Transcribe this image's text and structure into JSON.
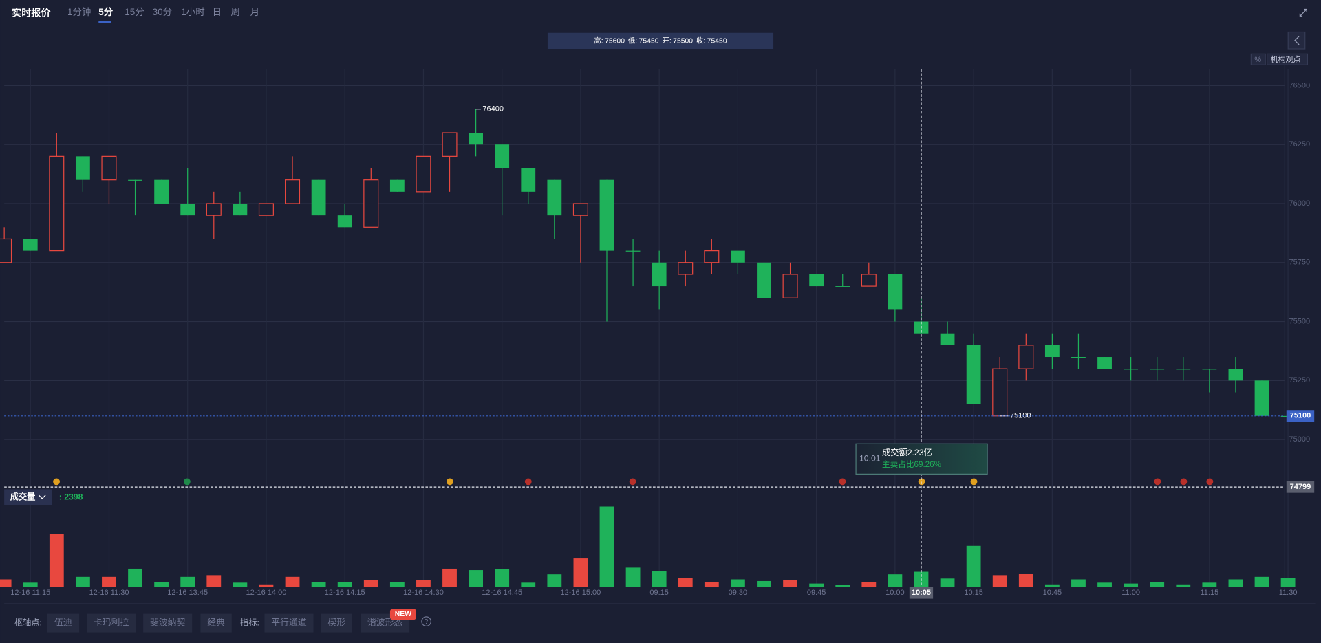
{
  "header": {
    "title": "实时报价",
    "tabs": [
      "1分钟",
      "5分",
      "15分",
      "30分",
      "1小时",
      "日",
      "周",
      "月"
    ],
    "percent": "%",
    "views": "机构观点"
  },
  "chart_data": {
    "type": "candlestick",
    "categories": [
      null,
      "12-16 11:15",
      null,
      null,
      "12-16 11:30",
      null,
      null,
      "12-16 13:45",
      null,
      null,
      "12-16 14:00",
      null,
      null,
      "12-16 14:15",
      null,
      null,
      "12-16 14:30",
      null,
      null,
      "12-16 14:45",
      null,
      null,
      "12-16 15:00",
      null,
      null,
      "09:15",
      null,
      null,
      "09:30",
      null,
      null,
      "09:45",
      null,
      null,
      "10:00",
      null,
      null,
      "10:15",
      null,
      null,
      "10:45",
      null,
      null,
      "11:00",
      null,
      null,
      "11:15",
      null,
      null,
      "11:30"
    ],
    "open": [
      75750,
      75850,
      75800,
      76200,
      76100,
      76100,
      76100,
      76000,
      75950,
      76000,
      75950,
      76000,
      76100,
      75950,
      75900,
      76100,
      76050,
      76200,
      76300,
      76250,
      76150,
      76100,
      75950,
      76100,
      75800,
      75750,
      75700,
      75750,
      75800,
      75750,
      75600,
      75700,
      75650,
      75650,
      75700,
      75500,
      75450,
      75400,
      75100,
      75300,
      75400,
      75350,
      75350,
      75300,
      75300,
      75300,
      75300,
      75300,
      75250,
      75100
    ],
    "high": [
      75900,
      75850,
      76300,
      76200,
      76200,
      76100,
      76100,
      76150,
      76050,
      76050,
      76000,
      76200,
      76100,
      76000,
      76150,
      76100,
      76200,
      76300,
      76400,
      76250,
      76150,
      76100,
      76000,
      76100,
      75850,
      75800,
      75800,
      75850,
      75800,
      75750,
      75750,
      75700,
      75700,
      75750,
      75700,
      75600,
      75500,
      75450,
      75350,
      75450,
      75450,
      75450,
      75350,
      75350,
      75350,
      75350,
      75300,
      75350,
      75250,
      75100
    ],
    "low": [
      75750,
      75800,
      75800,
      76050,
      76000,
      75950,
      76000,
      75950,
      75850,
      75950,
      75950,
      76000,
      75950,
      75900,
      75900,
      76050,
      76050,
      76050,
      76200,
      75950,
      76000,
      75850,
      75750,
      75500,
      75650,
      75550,
      75650,
      75700,
      75700,
      75600,
      75600,
      75650,
      75650,
      75650,
      75500,
      75450,
      75400,
      75150,
      75100,
      75250,
      75300,
      75300,
      75300,
      75250,
      75250,
      75250,
      75200,
      75200,
      75100,
      75100
    ],
    "close": [
      75850,
      75800,
      76200,
      76100,
      76200,
      76100,
      76000,
      75950,
      76000,
      75950,
      76000,
      76100,
      75950,
      75900,
      76100,
      76050,
      76200,
      76300,
      76250,
      76150,
      76050,
      75950,
      76000,
      75800,
      75800,
      75650,
      75750,
      75800,
      75750,
      75600,
      75700,
      75650,
      75650,
      75700,
      75550,
      75450,
      75400,
      75150,
      75300,
      75400,
      75350,
      75350,
      75300,
      75300,
      75300,
      75300,
      75300,
      75250,
      75100,
      75100
    ],
    "up_color": "#e8483f",
    "down_color": "#1fb25a",
    "ylim": [
      74800,
      76570
    ],
    "yticks": [
      75000,
      75250,
      75500,
      75750,
      76000,
      76250,
      76500
    ],
    "grid": true,
    "ohlc_header": [
      {
        "label": "高:",
        "value": 75600
      },
      {
        "label": "低:",
        "value": 75450
      },
      {
        "label": "开:",
        "value": 75500
      },
      {
        "label": "收:",
        "value": 75450
      }
    ],
    "max_label": 76400,
    "min_label": 75100,
    "last_price": 75100,
    "crosshair": {
      "value": 74799,
      "label": "10:05"
    },
    "tooltip": {
      "time": "10:01",
      "amount": "成交额2.23亿",
      "ratio": "主卖占比69.26%"
    },
    "volume": {
      "title": "成交量",
      "current": {
        "value": 2398,
        "label": ": 2398"
      },
      "values": [
        1200,
        670,
        8400,
        1600,
        1600,
        2900,
        800,
        1600,
        1870,
        670,
        400,
        1600,
        800,
        800,
        1070,
        800,
        1070,
        2900,
        2670,
        2800,
        670,
        2000,
        4530,
        12800,
        3070,
        2530,
        1470,
        800,
        1200,
        930,
        1070,
        530,
        270,
        800,
        2000,
        2398,
        1330,
        6530,
        1870,
        2130,
        400,
        1200,
        670,
        530,
        800,
        400,
        670,
        1200,
        1600,
        1470
      ],
      "ylim": [
        0,
        13000
      ]
    }
  },
  "footer": {
    "pivot_label": "枢轴点:",
    "pivot_buttons": [
      "伍迪",
      "卡玛利拉",
      "斐波纳契",
      "经典"
    ],
    "indicator_label": "指标:",
    "indicator_buttons": [
      "平行通道",
      "楔形",
      "谐波形态"
    ],
    "badge": "NEW",
    "help": "?"
  }
}
